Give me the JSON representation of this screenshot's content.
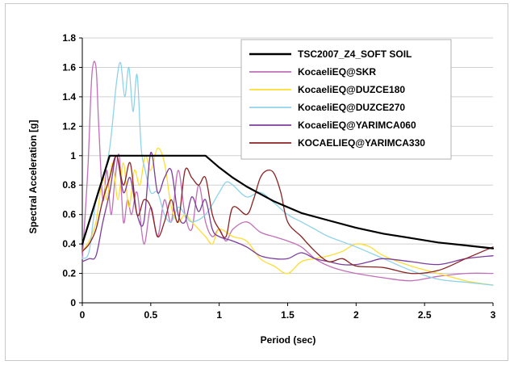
{
  "chart_data": {
    "type": "line",
    "title": "",
    "xlabel": "Period (sec)",
    "ylabel": "Spectral Acceleration [g]",
    "xlim": [
      0,
      3
    ],
    "ylim": [
      0,
      1.8
    ],
    "xticks": [
      0,
      0.5,
      1,
      1.5,
      2,
      2.5,
      3
    ],
    "xtick_labels": [
      "0",
      "0.5",
      "1",
      "1.5",
      "2",
      "2.5",
      "3"
    ],
    "yticks": [
      0,
      0.2,
      0.4,
      0.6,
      0.8,
      1,
      1.2,
      1.4,
      1.6,
      1.8
    ],
    "ytick_labels": [
      "0",
      "0.2",
      "0.4",
      "0.6",
      "0.8",
      "1",
      "1.2",
      "1.4",
      "1.6",
      "1.8"
    ],
    "grid": "horizontal",
    "legend_position": "top-right",
    "series": [
      {
        "name": "TSC2007_Z4_SOFT SOIL",
        "color": "#000000",
        "width": 2.2,
        "x": [
          0,
          0.2,
          0.9,
          1.0,
          1.1,
          1.2,
          1.4,
          1.6,
          1.8,
          2.0,
          2.2,
          2.4,
          2.6,
          2.8,
          3.0
        ],
        "y": [
          0.4,
          1.0,
          1.0,
          0.92,
          0.85,
          0.79,
          0.69,
          0.61,
          0.56,
          0.51,
          0.47,
          0.44,
          0.41,
          0.39,
          0.37
        ]
      },
      {
        "name": "KocaeliEQ@SKR",
        "color": "#c16fb8",
        "width": 1.3,
        "x": [
          0,
          0.04,
          0.07,
          0.1,
          0.12,
          0.15,
          0.18,
          0.21,
          0.24,
          0.27,
          0.3,
          0.33,
          0.36,
          0.4,
          0.45,
          0.5,
          0.55,
          0.6,
          0.65,
          0.7,
          0.75,
          0.8,
          0.85,
          0.9,
          0.95,
          1.0,
          1.05,
          1.1,
          1.2,
          1.3,
          1.4,
          1.5,
          1.6,
          1.7,
          1.8,
          1.9,
          2.0,
          2.2,
          2.4,
          2.6,
          2.8,
          3.0
        ],
        "y": [
          0.3,
          0.9,
          1.55,
          1.6,
          1.2,
          0.7,
          0.9,
          0.6,
          0.85,
          1.0,
          0.55,
          0.7,
          0.6,
          0.75,
          0.4,
          0.65,
          0.45,
          0.7,
          0.55,
          0.9,
          0.6,
          0.5,
          0.8,
          0.55,
          0.45,
          0.5,
          0.42,
          0.5,
          0.55,
          0.48,
          0.45,
          0.42,
          0.38,
          0.3,
          0.25,
          0.22,
          0.2,
          0.17,
          0.15,
          0.18,
          0.2,
          0.2
        ]
      },
      {
        "name": "KocaeliEQ@DUZCE180",
        "color": "#ffdd33",
        "width": 1.3,
        "x": [
          0,
          0.05,
          0.1,
          0.15,
          0.18,
          0.22,
          0.26,
          0.3,
          0.34,
          0.38,
          0.42,
          0.46,
          0.5,
          0.55,
          0.6,
          0.65,
          0.7,
          0.75,
          0.8,
          0.85,
          0.9,
          0.95,
          1.0,
          1.1,
          1.2,
          1.3,
          1.4,
          1.5,
          1.6,
          1.7,
          1.8,
          1.9,
          2.0,
          2.1,
          2.2,
          2.4,
          2.6,
          2.8,
          3.0
        ],
        "y": [
          0.35,
          0.42,
          0.55,
          0.85,
          0.7,
          0.95,
          0.7,
          0.95,
          0.65,
          0.9,
          0.8,
          1.0,
          0.9,
          1.05,
          0.95,
          0.65,
          0.55,
          0.6,
          0.55,
          0.5,
          0.45,
          0.4,
          0.5,
          0.45,
          0.42,
          0.3,
          0.25,
          0.2,
          0.28,
          0.3,
          0.32,
          0.35,
          0.4,
          0.38,
          0.32,
          0.25,
          0.2,
          0.15,
          0.12
        ]
      },
      {
        "name": "KocaeliEQ@DUZCE270",
        "color": "#8fd3e8",
        "width": 1.3,
        "x": [
          0,
          0.05,
          0.1,
          0.15,
          0.2,
          0.25,
          0.28,
          0.31,
          0.34,
          0.37,
          0.4,
          0.43,
          0.46,
          0.5,
          0.55,
          0.6,
          0.65,
          0.7,
          0.75,
          0.8,
          0.9,
          1.0,
          1.05,
          1.1,
          1.2,
          1.3,
          1.4,
          1.5,
          1.6,
          1.7,
          1.8,
          2.0,
          2.2,
          2.4,
          2.6,
          2.8,
          3.0
        ],
        "y": [
          0.3,
          0.35,
          0.7,
          0.85,
          1.05,
          1.5,
          1.63,
          1.4,
          1.6,
          1.3,
          1.55,
          1.05,
          0.9,
          0.75,
          0.75,
          0.6,
          0.55,
          0.65,
          0.6,
          0.55,
          0.6,
          0.75,
          0.82,
          0.8,
          0.72,
          0.75,
          0.68,
          0.6,
          0.55,
          0.5,
          0.45,
          0.38,
          0.3,
          0.22,
          0.16,
          0.14,
          0.12
        ]
      },
      {
        "name": "KocaeliEQ@YARIMCA060",
        "color": "#7b3d9c",
        "width": 1.3,
        "x": [
          0,
          0.05,
          0.1,
          0.15,
          0.2,
          0.25,
          0.3,
          0.35,
          0.4,
          0.45,
          0.5,
          0.55,
          0.6,
          0.65,
          0.7,
          0.75,
          0.8,
          0.85,
          0.9,
          0.95,
          1.0,
          1.1,
          1.2,
          1.3,
          1.4,
          1.5,
          1.6,
          1.7,
          1.8,
          1.9,
          2.0,
          2.1,
          2.2,
          2.4,
          2.6,
          2.8,
          3.0
        ],
        "y": [
          0.28,
          0.3,
          0.32,
          0.55,
          0.75,
          1.0,
          0.75,
          0.85,
          0.6,
          0.55,
          1.02,
          0.75,
          0.85,
          0.9,
          0.6,
          0.55,
          0.72,
          0.62,
          0.7,
          0.5,
          0.45,
          0.42,
          0.38,
          0.32,
          0.3,
          0.3,
          0.34,
          0.3,
          0.28,
          0.26,
          0.26,
          0.28,
          0.3,
          0.28,
          0.26,
          0.3,
          0.32
        ]
      },
      {
        "name": "KOCAELIEQ@YARIMCA330",
        "color": "#8b2323",
        "width": 1.3,
        "x": [
          0,
          0.05,
          0.1,
          0.15,
          0.2,
          0.25,
          0.3,
          0.35,
          0.4,
          0.45,
          0.5,
          0.55,
          0.6,
          0.65,
          0.7,
          0.75,
          0.8,
          0.85,
          0.9,
          0.95,
          1.0,
          1.05,
          1.1,
          1.2,
          1.25,
          1.3,
          1.35,
          1.4,
          1.45,
          1.5,
          1.6,
          1.7,
          1.8,
          1.9,
          2.0,
          2.2,
          2.4,
          2.6,
          2.8,
          3.0
        ],
        "y": [
          0.35,
          0.4,
          0.5,
          0.7,
          0.85,
          1.0,
          0.8,
          0.95,
          0.6,
          0.7,
          0.65,
          0.45,
          0.55,
          0.7,
          0.55,
          0.9,
          0.85,
          0.8,
          0.85,
          0.6,
          0.5,
          0.45,
          0.65,
          0.6,
          0.7,
          0.85,
          0.9,
          0.88,
          0.75,
          0.55,
          0.45,
          0.35,
          0.28,
          0.3,
          0.25,
          0.24,
          0.2,
          0.22,
          0.3,
          0.38
        ]
      }
    ]
  }
}
